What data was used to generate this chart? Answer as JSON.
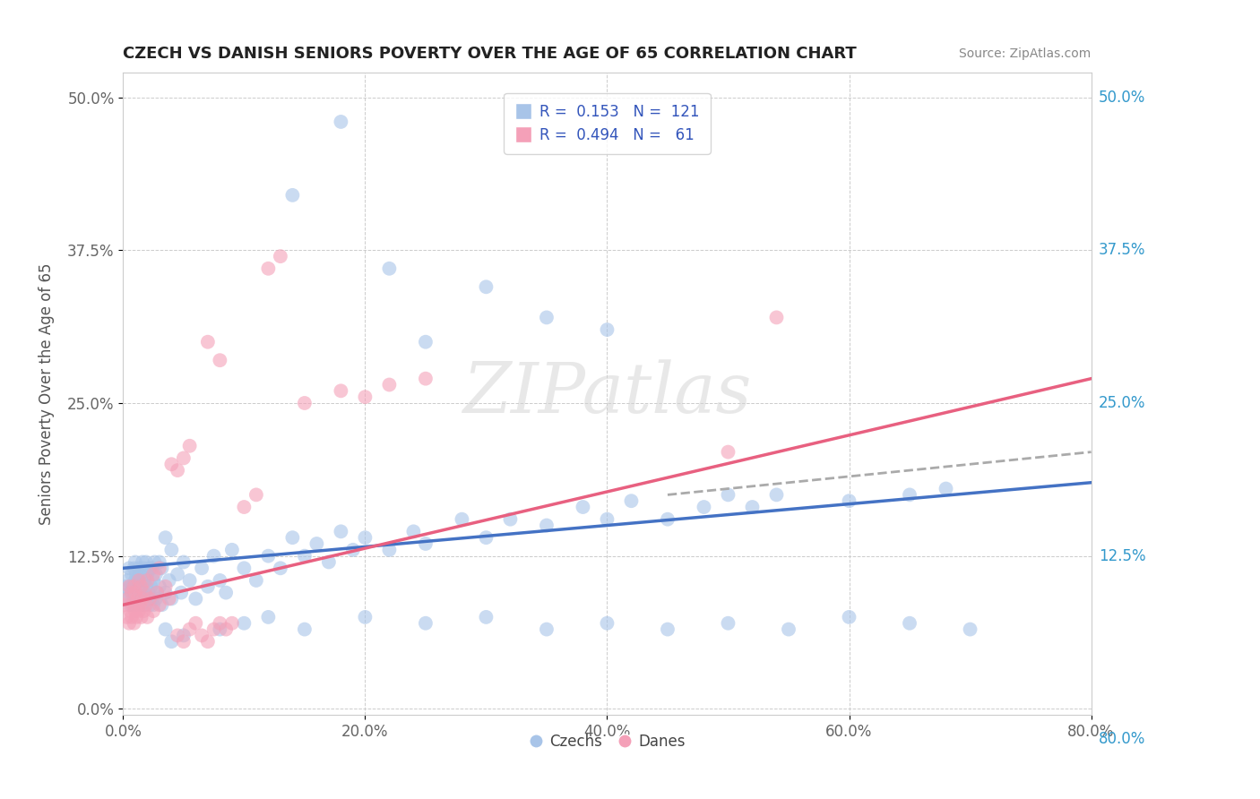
{
  "title": "CZECH VS DANISH SENIORS POVERTY OVER THE AGE OF 65 CORRELATION CHART",
  "source": "Source: ZipAtlas.com",
  "xlabel_ticks": [
    "0.0%",
    "20.0%",
    "40.0%",
    "60.0%",
    "80.0%"
  ],
  "ylabel_ticks": [
    "0.0%",
    "12.5%",
    "25.0%",
    "37.5%",
    "50.0%"
  ],
  "xlim": [
    0.0,
    0.8
  ],
  "ylim": [
    -0.005,
    0.52
  ],
  "ylabel": "Seniors Poverty Over the Age of 65",
  "czech_color": "#a8c4e8",
  "danish_color": "#f4a0b8",
  "czech_line_color": "#4472c4",
  "danish_line_color": "#e86080",
  "legend_R_czech": "R =  0.153",
  "legend_N_czech": "N =  121",
  "legend_R_danish": "R =  0.494",
  "legend_N_danish": "N =   61",
  "watermark": "ZIPatlas",
  "czech_scatter": [
    [
      0.002,
      0.1
    ],
    [
      0.003,
      0.09
    ],
    [
      0.004,
      0.105
    ],
    [
      0.005,
      0.095
    ],
    [
      0.005,
      0.115
    ],
    [
      0.006,
      0.085
    ],
    [
      0.006,
      0.1
    ],
    [
      0.007,
      0.095
    ],
    [
      0.007,
      0.11
    ],
    [
      0.008,
      0.085
    ],
    [
      0.008,
      0.1
    ],
    [
      0.009,
      0.095
    ],
    [
      0.009,
      0.115
    ],
    [
      0.01,
      0.085
    ],
    [
      0.01,
      0.105
    ],
    [
      0.01,
      0.12
    ],
    [
      0.011,
      0.09
    ],
    [
      0.011,
      0.11
    ],
    [
      0.012,
      0.085
    ],
    [
      0.012,
      0.105
    ],
    [
      0.013,
      0.095
    ],
    [
      0.013,
      0.115
    ],
    [
      0.014,
      0.09
    ],
    [
      0.014,
      0.11
    ],
    [
      0.015,
      0.085
    ],
    [
      0.015,
      0.105
    ],
    [
      0.016,
      0.095
    ],
    [
      0.016,
      0.12
    ],
    [
      0.017,
      0.09
    ],
    [
      0.017,
      0.115
    ],
    [
      0.018,
      0.085
    ],
    [
      0.018,
      0.105
    ],
    [
      0.019,
      0.1
    ],
    [
      0.019,
      0.12
    ],
    [
      0.02,
      0.09
    ],
    [
      0.02,
      0.11
    ],
    [
      0.021,
      0.095
    ],
    [
      0.022,
      0.085
    ],
    [
      0.022,
      0.115
    ],
    [
      0.023,
      0.1
    ],
    [
      0.024,
      0.09
    ],
    [
      0.024,
      0.115
    ],
    [
      0.025,
      0.085
    ],
    [
      0.025,
      0.105
    ],
    [
      0.026,
      0.12
    ],
    [
      0.027,
      0.09
    ],
    [
      0.027,
      0.11
    ],
    [
      0.028,
      0.095
    ],
    [
      0.03,
      0.1
    ],
    [
      0.03,
      0.12
    ],
    [
      0.032,
      0.085
    ],
    [
      0.032,
      0.115
    ],
    [
      0.035,
      0.095
    ],
    [
      0.035,
      0.14
    ],
    [
      0.038,
      0.105
    ],
    [
      0.04,
      0.09
    ],
    [
      0.04,
      0.13
    ],
    [
      0.045,
      0.11
    ],
    [
      0.048,
      0.095
    ],
    [
      0.05,
      0.12
    ],
    [
      0.055,
      0.105
    ],
    [
      0.06,
      0.09
    ],
    [
      0.065,
      0.115
    ],
    [
      0.07,
      0.1
    ],
    [
      0.075,
      0.125
    ],
    [
      0.08,
      0.105
    ],
    [
      0.085,
      0.095
    ],
    [
      0.09,
      0.13
    ],
    [
      0.1,
      0.115
    ],
    [
      0.11,
      0.105
    ],
    [
      0.12,
      0.125
    ],
    [
      0.13,
      0.115
    ],
    [
      0.14,
      0.14
    ],
    [
      0.15,
      0.125
    ],
    [
      0.16,
      0.135
    ],
    [
      0.17,
      0.12
    ],
    [
      0.18,
      0.145
    ],
    [
      0.19,
      0.13
    ],
    [
      0.2,
      0.14
    ],
    [
      0.22,
      0.13
    ],
    [
      0.24,
      0.145
    ],
    [
      0.25,
      0.135
    ],
    [
      0.28,
      0.155
    ],
    [
      0.3,
      0.14
    ],
    [
      0.32,
      0.155
    ],
    [
      0.35,
      0.15
    ],
    [
      0.38,
      0.165
    ],
    [
      0.4,
      0.155
    ],
    [
      0.42,
      0.17
    ],
    [
      0.45,
      0.155
    ],
    [
      0.48,
      0.165
    ],
    [
      0.5,
      0.175
    ],
    [
      0.52,
      0.165
    ],
    [
      0.54,
      0.175
    ],
    [
      0.14,
      0.42
    ],
    [
      0.18,
      0.48
    ],
    [
      0.22,
      0.36
    ],
    [
      0.25,
      0.3
    ],
    [
      0.3,
      0.345
    ],
    [
      0.35,
      0.32
    ],
    [
      0.4,
      0.31
    ],
    [
      0.035,
      0.065
    ],
    [
      0.04,
      0.055
    ],
    [
      0.05,
      0.06
    ],
    [
      0.08,
      0.065
    ],
    [
      0.1,
      0.07
    ],
    [
      0.12,
      0.075
    ],
    [
      0.15,
      0.065
    ],
    [
      0.2,
      0.075
    ],
    [
      0.25,
      0.07
    ],
    [
      0.3,
      0.075
    ],
    [
      0.35,
      0.065
    ],
    [
      0.4,
      0.07
    ],
    [
      0.45,
      0.065
    ],
    [
      0.5,
      0.07
    ],
    [
      0.55,
      0.065
    ],
    [
      0.6,
      0.075
    ],
    [
      0.65,
      0.07
    ],
    [
      0.7,
      0.065
    ],
    [
      0.6,
      0.17
    ],
    [
      0.65,
      0.175
    ],
    [
      0.68,
      0.18
    ]
  ],
  "danish_scatter": [
    [
      0.002,
      0.085
    ],
    [
      0.003,
      0.075
    ],
    [
      0.004,
      0.09
    ],
    [
      0.005,
      0.07
    ],
    [
      0.005,
      0.1
    ],
    [
      0.006,
      0.08
    ],
    [
      0.007,
      0.075
    ],
    [
      0.007,
      0.095
    ],
    [
      0.008,
      0.085
    ],
    [
      0.009,
      0.07
    ],
    [
      0.009,
      0.1
    ],
    [
      0.01,
      0.08
    ],
    [
      0.01,
      0.095
    ],
    [
      0.011,
      0.075
    ],
    [
      0.012,
      0.09
    ],
    [
      0.013,
      0.08
    ],
    [
      0.013,
      0.105
    ],
    [
      0.014,
      0.085
    ],
    [
      0.015,
      0.075
    ],
    [
      0.015,
      0.1
    ],
    [
      0.016,
      0.09
    ],
    [
      0.017,
      0.08
    ],
    [
      0.018,
      0.095
    ],
    [
      0.019,
      0.085
    ],
    [
      0.02,
      0.075
    ],
    [
      0.02,
      0.105
    ],
    [
      0.022,
      0.09
    ],
    [
      0.025,
      0.08
    ],
    [
      0.025,
      0.11
    ],
    [
      0.028,
      0.095
    ],
    [
      0.03,
      0.085
    ],
    [
      0.03,
      0.115
    ],
    [
      0.035,
      0.1
    ],
    [
      0.038,
      0.09
    ],
    [
      0.04,
      0.2
    ],
    [
      0.045,
      0.195
    ],
    [
      0.05,
      0.205
    ],
    [
      0.055,
      0.215
    ],
    [
      0.12,
      0.36
    ],
    [
      0.13,
      0.37
    ],
    [
      0.07,
      0.3
    ],
    [
      0.08,
      0.285
    ],
    [
      0.15,
      0.25
    ],
    [
      0.18,
      0.26
    ],
    [
      0.2,
      0.255
    ],
    [
      0.22,
      0.265
    ],
    [
      0.25,
      0.27
    ],
    [
      0.1,
      0.165
    ],
    [
      0.11,
      0.175
    ],
    [
      0.045,
      0.06
    ],
    [
      0.05,
      0.055
    ],
    [
      0.055,
      0.065
    ],
    [
      0.06,
      0.07
    ],
    [
      0.065,
      0.06
    ],
    [
      0.07,
      0.055
    ],
    [
      0.075,
      0.065
    ],
    [
      0.08,
      0.07
    ],
    [
      0.085,
      0.065
    ],
    [
      0.09,
      0.07
    ],
    [
      0.5,
      0.21
    ],
    [
      0.54,
      0.32
    ]
  ],
  "czech_line": [
    0.0,
    0.8,
    0.115,
    0.185
  ],
  "danish_line": [
    0.0,
    0.8,
    0.085,
    0.27
  ],
  "dash_line": [
    0.45,
    0.8,
    0.175,
    0.21
  ]
}
